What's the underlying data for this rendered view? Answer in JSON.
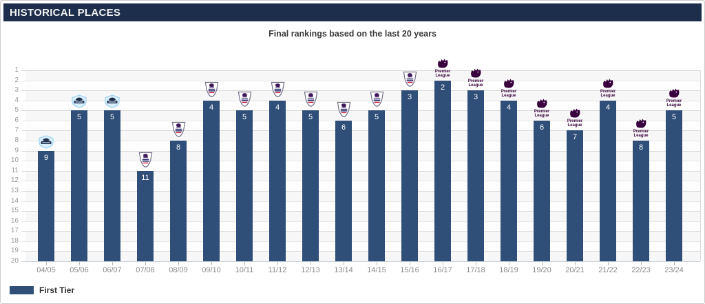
{
  "header": {
    "title": "HISTORICAL PLACES"
  },
  "title": "Final rankings based on the last 20 years",
  "legend": {
    "label": "First Tier",
    "swatch_color": "#2f4e78"
  },
  "colors": {
    "header_bg": "#1d2e4c",
    "bar": "#2f4e78",
    "pl_purple": "#38003c",
    "bpl_shield_stroke": "#6f6a85",
    "bpl_lion": "#3d195b",
    "bpl_text_navy": "#2b2f6e",
    "bpl_text_red": "#c4122e",
    "premiership_fill": "#d9effc",
    "premiership_stroke": "#9ed4f4",
    "premiership_navy": "#1d2e4c"
  },
  "chart_data": {
    "type": "bar",
    "title": "Final rankings based on the last 20 years",
    "categories": [
      "04/05",
      "05/06",
      "06/07",
      "07/08",
      "08/09",
      "09/10",
      "10/11",
      "11/12",
      "12/13",
      "13/14",
      "14/15",
      "15/16",
      "16/17",
      "17/18",
      "18/19",
      "19/20",
      "20/21",
      "21/22",
      "22/23",
      "23/24"
    ],
    "series": [
      {
        "name": "First Tier",
        "values": [
          9,
          5,
          5,
          11,
          8,
          4,
          5,
          4,
          5,
          6,
          5,
          3,
          2,
          3,
          4,
          6,
          7,
          4,
          8,
          5
        ]
      }
    ],
    "value_labels_shown": true,
    "y_axis": {
      "inverted": true,
      "min": 1,
      "max": 20,
      "tick_interval": 1
    },
    "grid": true,
    "legend_position": "bottom-left",
    "bar_color": "#2f4e78",
    "logo_eras": [
      {
        "name": "barclays-premiership",
        "bar_indexes": [
          0,
          1,
          2
        ]
      },
      {
        "name": "barclays-premier-league",
        "bar_indexes": [
          3,
          4,
          5,
          6,
          7,
          8,
          9,
          10,
          11
        ]
      },
      {
        "name": "premier-league",
        "label": "Premier League",
        "bar_indexes": [
          12,
          13,
          14,
          15,
          16,
          17,
          18,
          19
        ]
      }
    ]
  }
}
